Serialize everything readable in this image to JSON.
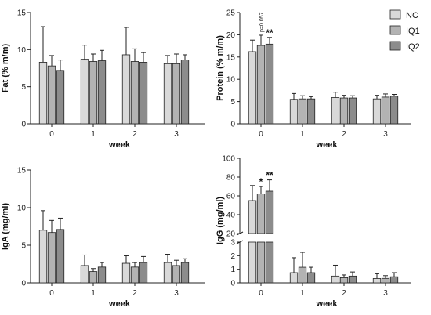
{
  "legend": [
    "NC",
    "IQ1",
    "IQ2"
  ],
  "colors": {
    "NC": "#d9d9d9",
    "IQ1": "#b3b3b3",
    "IQ2": "#8c8c8c"
  },
  "chart_data": [
    {
      "type": "bar",
      "title": "",
      "xlabel": "week",
      "ylabel": "Fat (% m/m)",
      "categories": [
        "0",
        "1",
        "2",
        "3"
      ],
      "ylim": [
        0,
        15
      ],
      "yticks": [
        0,
        5,
        10,
        15
      ],
      "series": [
        {
          "name": "NC",
          "values": [
            8.3,
            8.7,
            9.3,
            8.1
          ],
          "errors": [
            4.8,
            1.9,
            3.7,
            1.1
          ]
        },
        {
          "name": "IQ1",
          "values": [
            7.8,
            8.4,
            8.4,
            8.1
          ],
          "errors": [
            1.4,
            1.0,
            1.7,
            1.3
          ]
        },
        {
          "name": "IQ2",
          "values": [
            7.2,
            8.5,
            8.3,
            8.6
          ],
          "errors": [
            1.4,
            1.4,
            1.3,
            0.7
          ]
        }
      ],
      "annotations": []
    },
    {
      "type": "bar",
      "title": "",
      "xlabel": "week",
      "ylabel": "Protein (% m/m)",
      "categories": [
        "0",
        "1",
        "2",
        "3"
      ],
      "ylim": [
        0,
        25
      ],
      "yticks": [
        0,
        5,
        10,
        15,
        20,
        25
      ],
      "series": [
        {
          "name": "NC",
          "values": [
            16.2,
            5.5,
            5.9,
            5.6
          ],
          "errors": [
            2.6,
            1.3,
            1.2,
            0.8
          ]
        },
        {
          "name": "IQ1",
          "values": [
            17.6,
            5.6,
            5.8,
            6.0
          ],
          "errors": [
            2.3,
            0.7,
            0.6,
            0.7
          ]
        },
        {
          "name": "IQ2",
          "values": [
            17.9,
            5.6,
            5.8,
            6.2
          ],
          "errors": [
            1.5,
            0.5,
            0.5,
            0.4
          ]
        }
      ],
      "annotations": [
        {
          "category": "0",
          "series": "IQ1",
          "text": "p=0.057"
        },
        {
          "category": "0",
          "series": "IQ2",
          "text": "**"
        }
      ]
    },
    {
      "type": "bar",
      "title": "",
      "xlabel": "week",
      "ylabel": "IgA (mg/ml)",
      "categories": [
        "0",
        "1",
        "2",
        "3"
      ],
      "ylim": [
        0,
        15
      ],
      "yticks": [
        0,
        5,
        10,
        15
      ],
      "series": [
        {
          "name": "NC",
          "values": [
            7.0,
            2.3,
            2.6,
            2.7
          ],
          "errors": [
            2.6,
            1.4,
            1.0,
            1.1
          ]
        },
        {
          "name": "IQ1",
          "values": [
            6.7,
            1.5,
            2.1,
            2.3
          ],
          "errors": [
            1.6,
            0.4,
            0.6,
            0.7
          ]
        },
        {
          "name": "IQ2",
          "values": [
            7.1,
            2.1,
            2.7,
            2.7
          ],
          "errors": [
            1.5,
            0.6,
            0.8,
            0.5
          ]
        }
      ],
      "annotations": []
    },
    {
      "type": "bar",
      "title": "",
      "xlabel": "week",
      "ylabel": "IgG (mg/ml)",
      "categories": [
        "0",
        "1",
        "2",
        "3"
      ],
      "axis_break": {
        "lower": [
          0,
          3
        ],
        "upper": [
          20,
          100
        ]
      },
      "yticks": [
        0,
        1,
        2,
        3,
        20,
        40,
        60,
        80,
        100
      ],
      "series": [
        {
          "name": "NC",
          "values": [
            55,
            0.75,
            0.5,
            0.32
          ],
          "errors": [
            16,
            1.1,
            0.8,
            0.35
          ]
        },
        {
          "name": "IQ1",
          "values": [
            62,
            1.15,
            0.38,
            0.33
          ],
          "errors": [
            8,
            1.1,
            0.2,
            0.2
          ]
        },
        {
          "name": "IQ2",
          "values": [
            65,
            0.75,
            0.5,
            0.45
          ],
          "errors": [
            12,
            0.4,
            0.3,
            0.3
          ]
        }
      ],
      "annotations": [
        {
          "category": "0",
          "series": "IQ1",
          "text": "*"
        },
        {
          "category": "0",
          "series": "IQ2",
          "text": "**"
        }
      ]
    }
  ]
}
